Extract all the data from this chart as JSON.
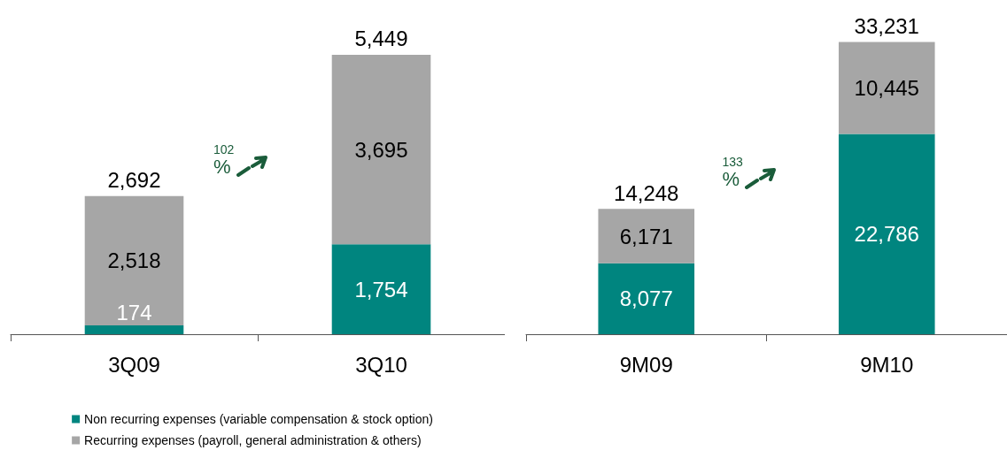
{
  "chart_data": [
    {
      "type": "bar",
      "categories": [
        "3Q09",
        "3Q10"
      ],
      "stacked": true,
      "tick_labels": "x",
      "legend": "bottom",
      "totals": [
        "2,692",
        "5,449"
      ],
      "annotations": [
        "102 %"
      ],
      "series": [
        {
          "name": "Non recurring expenses (variable compensation & stock option)",
          "color": "#00857f",
          "values": [
            174,
            1754
          ],
          "value_labels": [
            "174",
            "1,754"
          ]
        },
        {
          "name": "Recurring expenses (payroll, general administration & others)",
          "color": "#a6a6a6",
          "values": [
            2518,
            3695
          ],
          "value_labels": [
            "2,518",
            "3,695"
          ]
        }
      ]
    },
    {
      "type": "bar",
      "categories": [
        "9M09",
        "9M10"
      ],
      "stacked": true,
      "tick_labels": "x",
      "legend": false,
      "totals": [
        "14,248",
        "33,231"
      ],
      "annotations": [
        "133 %"
      ],
      "series": [
        {
          "color": "#00857f",
          "values": [
            8077,
            22786
          ],
          "value_labels": [
            "8,077",
            "22,786"
          ]
        },
        {
          "color": "#a6a6a6",
          "values": [
            6171,
            10445
          ],
          "value_labels": [
            "6,171",
            "10,445"
          ]
        }
      ]
    }
  ]
}
